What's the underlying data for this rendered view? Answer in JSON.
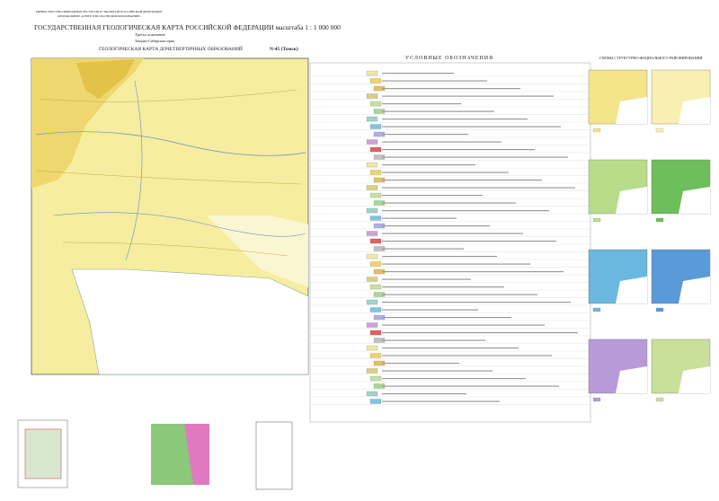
{
  "header": {
    "ministry": "МИНИСТЕРСТВО ПРИРОДНЫХ РЕСУРСОВ И ЭКОЛОГИИ РОССИЙСКОЙ ФЕДЕРАЦИИ",
    "agency": "ФЕДЕРАЛЬНОЕ АГЕНТСТВО ПО НЕДРОПОЛЬЗОВАНИЮ",
    "title": "ГОСУДАРСТВЕННАЯ ГЕОЛОГИЧЕСКАЯ КАРТА РОССИЙСКОЙ ФЕДЕРАЦИИ масштаба 1 : 1 000 000",
    "generation": "Третье поколение",
    "series": "Западно-Сибирская серия",
    "map_title": "ГЕОЛОГИЧЕСКАЯ КАРТА ДОЧЕТВЕРТИЧНЫХ ОБРАЗОВАНИЙ",
    "sheet": "N-45 (Томск)"
  },
  "legend": {
    "title": "УСЛОВНЫЕ ОБОЗНАЧЕНИЯ"
  },
  "schemes": {
    "title": "СХЕМЫ СТРУКТУРНО-ФАЦИАЛЬНОГО РАЙОНИРОВАНИЯ"
  }
}
